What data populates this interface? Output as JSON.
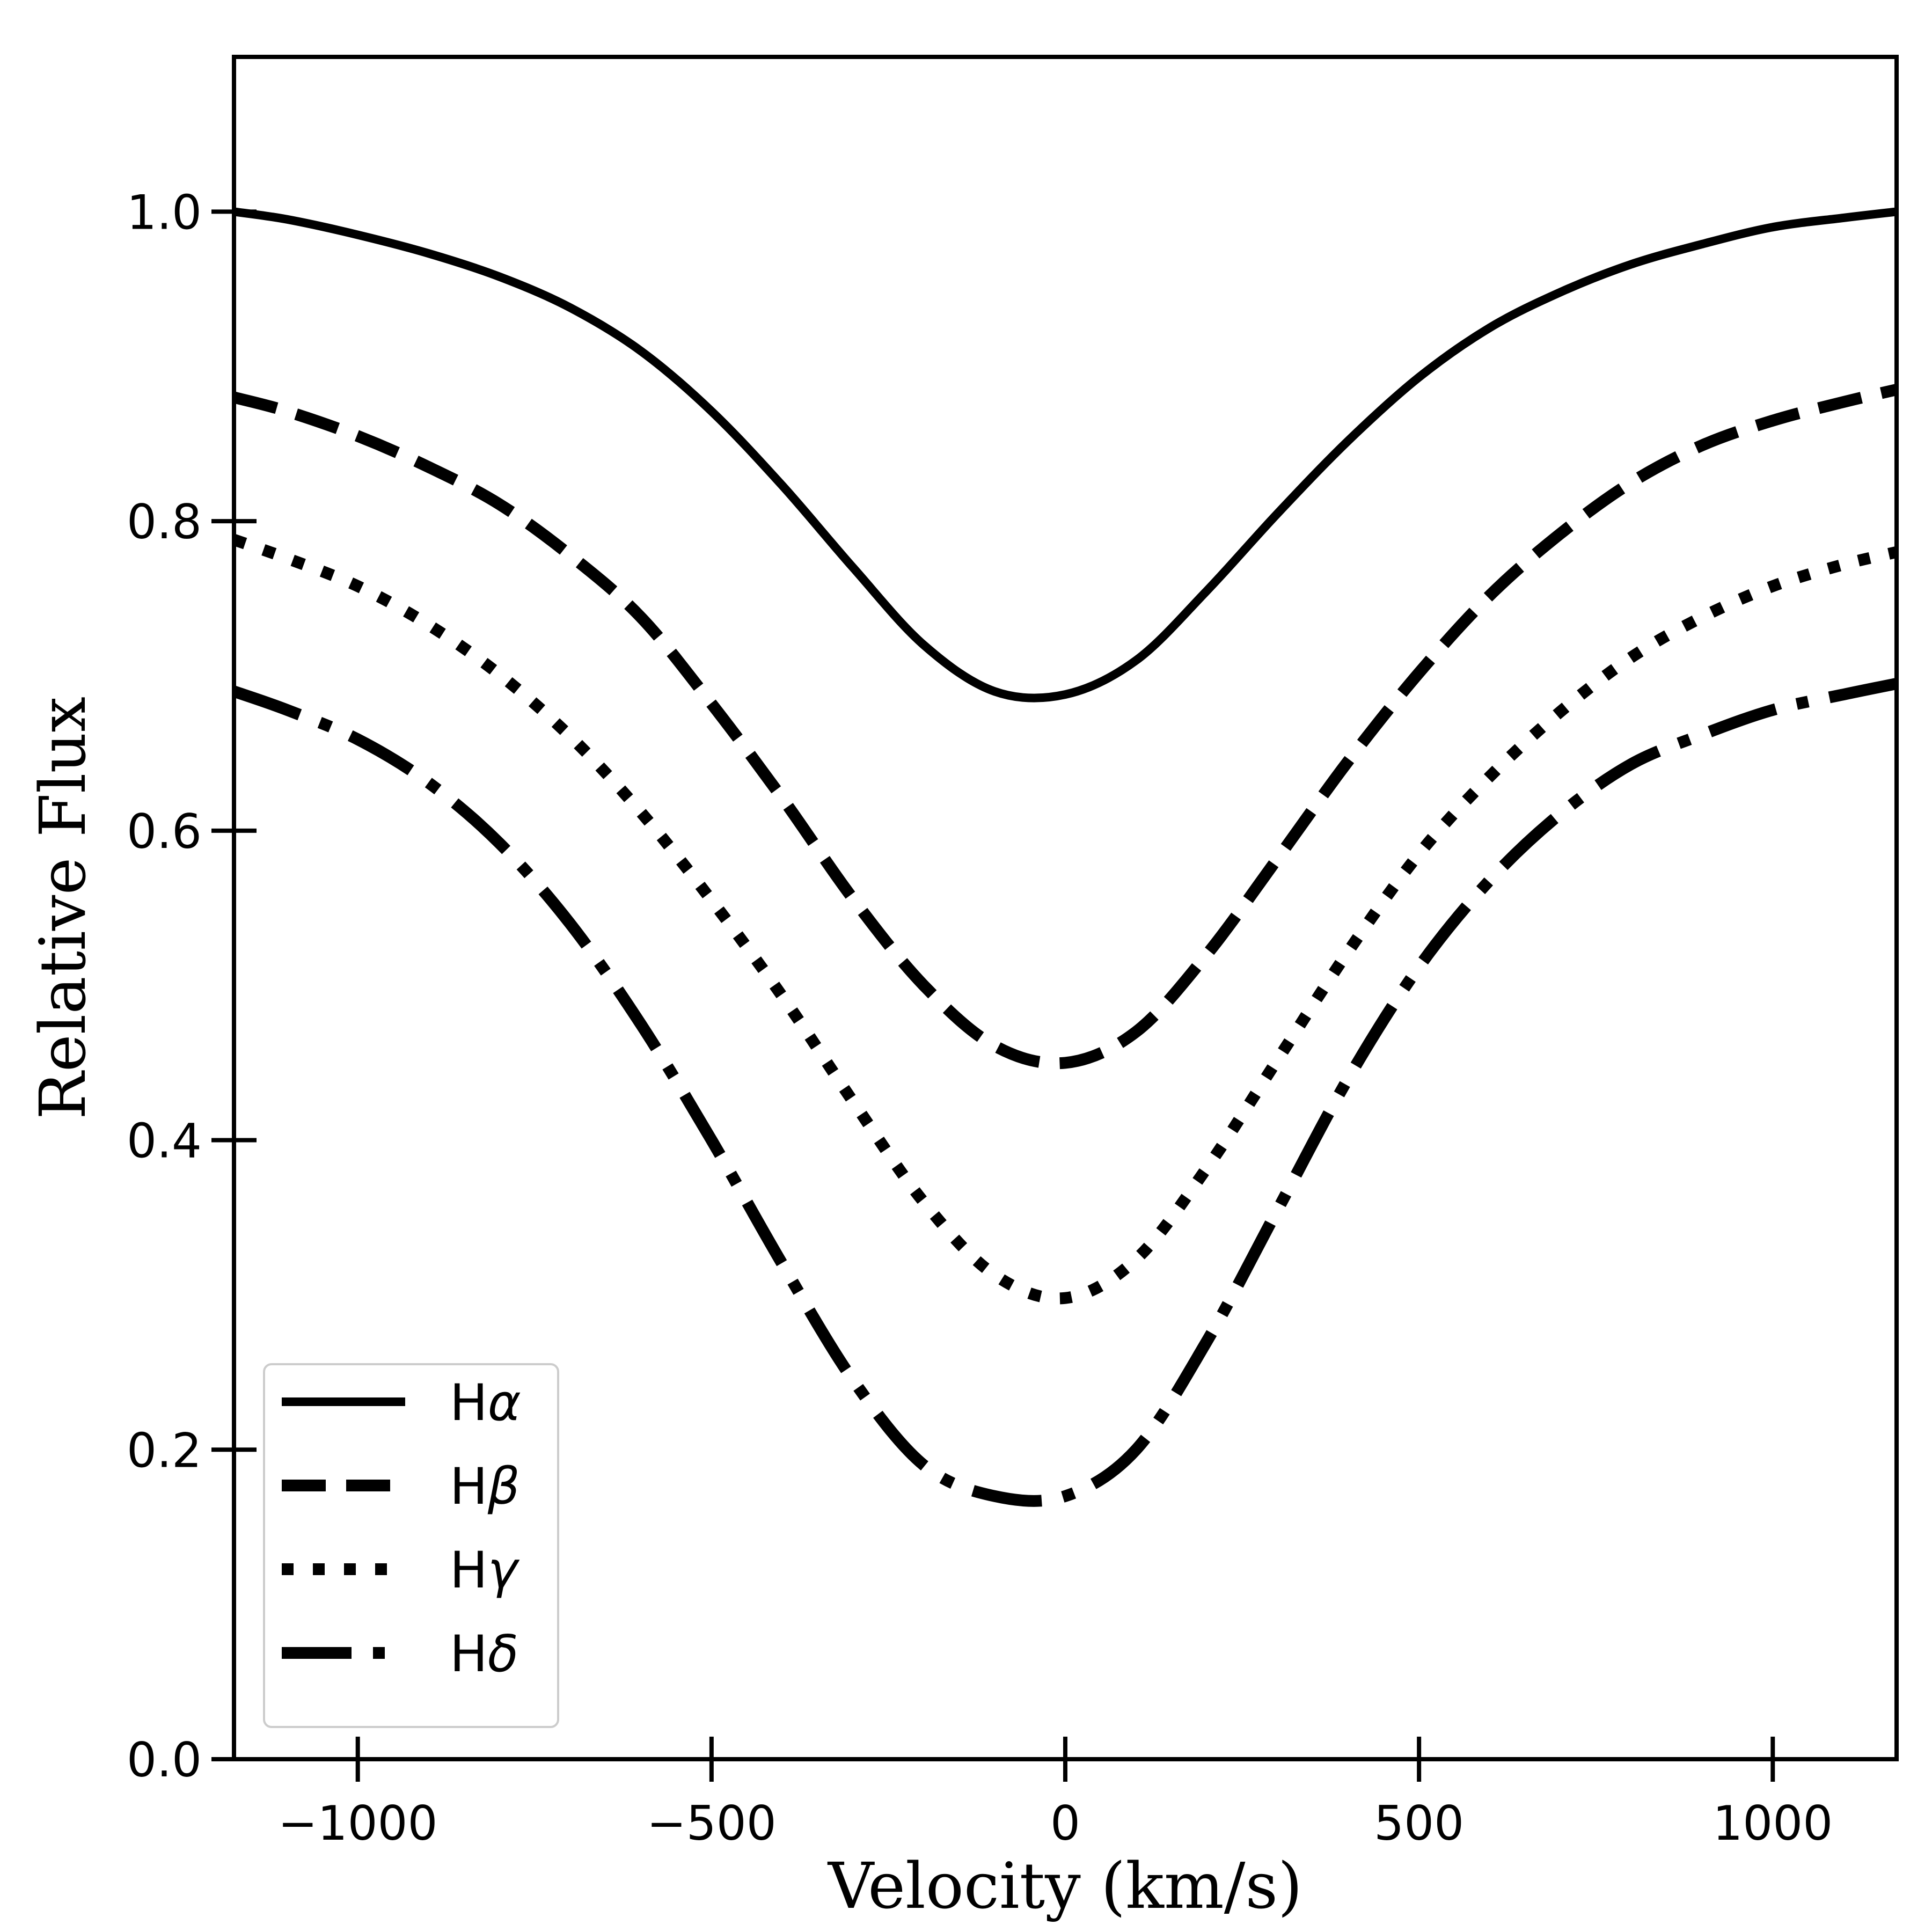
{
  "chart_data": {
    "type": "line",
    "title": "",
    "xlabel": "Velocity (km/s)",
    "ylabel": "Relative Flux",
    "xlim": [
      -1175,
      1175
    ],
    "ylim": [
      0.0,
      1.1
    ],
    "xticks": [
      -1000,
      -500,
      0,
      500,
      1000
    ],
    "xtick_labels": [
      "−1000",
      "−500",
      "0",
      "500",
      "1000"
    ],
    "yticks": [
      0.0,
      0.2,
      0.4,
      0.6,
      0.8,
      1.0
    ],
    "ytick_labels": [
      "0.0",
      "0.2",
      "0.4",
      "0.6",
      "0.8",
      "1.0"
    ],
    "grid": false,
    "legend_position": "lower-left",
    "x": [
      -1175,
      -1100,
      -1000,
      -900,
      -800,
      -700,
      -600,
      -500,
      -400,
      -300,
      -200,
      -100,
      0,
      100,
      200,
      300,
      400,
      500,
      600,
      700,
      800,
      900,
      1000,
      1100,
      1175
    ],
    "series": [
      {
        "name": "Hα",
        "prefix": "H",
        "greek": "α",
        "style": "solid",
        "color": "#000000",
        "values": [
          1.0,
          0.995,
          0.985,
          0.973,
          0.958,
          0.938,
          0.91,
          0.871,
          0.823,
          0.77,
          0.72,
          0.69,
          0.688,
          0.71,
          0.755,
          0.805,
          0.852,
          0.893,
          0.925,
          0.948,
          0.966,
          0.979,
          0.99,
          0.996,
          1.0
        ]
      },
      {
        "name": "Hβ",
        "prefix": "H",
        "greek": "β",
        "style": "dashed",
        "color": "#000000",
        "values": [
          0.88,
          0.871,
          0.855,
          0.835,
          0.811,
          0.778,
          0.738,
          0.682,
          0.621,
          0.556,
          0.5,
          0.461,
          0.45,
          0.47,
          0.52,
          0.582,
          0.645,
          0.702,
          0.752,
          0.792,
          0.825,
          0.849,
          0.865,
          0.877,
          0.885
        ]
      },
      {
        "name": "Hγ",
        "prefix": "H",
        "greek": "γ",
        "style": "dotted",
        "color": "#000000",
        "values": [
          0.788,
          0.776,
          0.758,
          0.733,
          0.701,
          0.661,
          0.612,
          0.555,
          0.493,
          0.425,
          0.36,
          0.313,
          0.298,
          0.323,
          0.382,
          0.452,
          0.522,
          0.585,
          0.635,
          0.677,
          0.712,
          0.738,
          0.758,
          0.772,
          0.78
        ]
      },
      {
        "name": "Hδ",
        "prefix": "H",
        "greek": "δ",
        "style": "dashdot",
        "color": "#000000",
        "values": [
          0.69,
          0.678,
          0.659,
          0.631,
          0.592,
          0.54,
          0.475,
          0.4,
          0.32,
          0.245,
          0.19,
          0.17,
          0.17,
          0.2,
          0.27,
          0.355,
          0.44,
          0.512,
          0.568,
          0.611,
          0.643,
          0.662,
          0.678,
          0.688,
          0.695
        ]
      }
    ]
  }
}
